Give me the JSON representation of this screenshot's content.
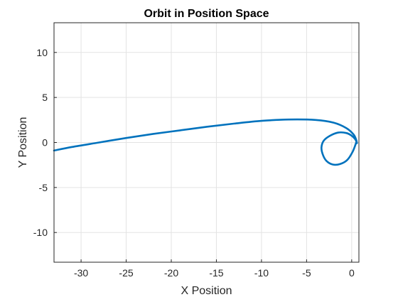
{
  "chart_data": {
    "type": "line",
    "title": "Orbit in Position Space",
    "xlabel": "X Position",
    "ylabel": "Y Position",
    "xlim": [
      -33,
      0.8
    ],
    "ylim": [
      -13.3,
      13.3
    ],
    "xticks": [
      -30,
      -25,
      -20,
      -15,
      -10,
      -5,
      0
    ],
    "yticks": [
      -10,
      -5,
      0,
      5,
      10
    ],
    "grid": true,
    "line_color": "#0072BD",
    "series": [
      {
        "x": [
          0.5,
          0.12,
          -0.5,
          -1.3,
          -2.1,
          -2.8,
          -3.2,
          -3.35,
          -3.1,
          -2.4,
          -1.5,
          -0.6,
          0.0,
          0.4,
          0.55,
          0.58,
          0.5,
          0.2,
          -0.6,
          -2.0,
          -4.0,
          -7.0,
          -10.0,
          -13.0,
          -16.0,
          -19.0,
          -22.0,
          -25.0,
          -28.0,
          -31.0,
          -33.0
        ],
        "y": [
          0.0,
          -1.0,
          -1.95,
          -2.4,
          -2.45,
          -2.05,
          -1.35,
          -0.55,
          0.2,
          0.75,
          1.1,
          1.05,
          0.75,
          0.35,
          0.0,
          -0.05,
          0.3,
          0.9,
          1.6,
          2.2,
          2.5,
          2.55,
          2.4,
          2.1,
          1.75,
          1.35,
          0.95,
          0.5,
          0.0,
          -0.5,
          -0.9
        ]
      }
    ]
  }
}
